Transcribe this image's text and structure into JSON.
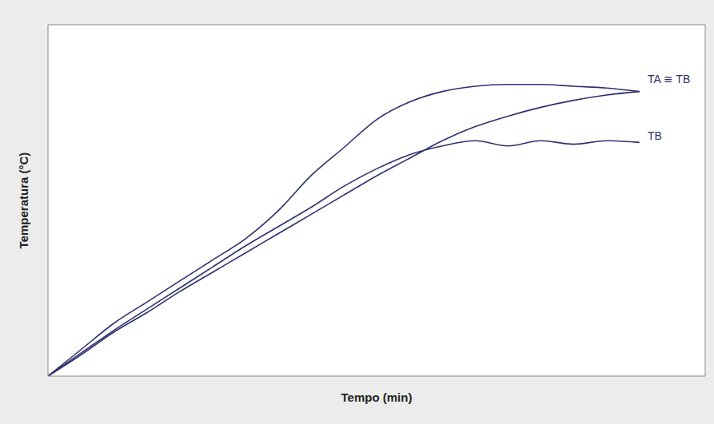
{
  "chart_data": {
    "type": "line",
    "x_label": "Tempo (min)",
    "y_label": "Temperatura (°C)",
    "x": [
      0,
      5,
      10,
      15,
      20,
      25,
      30,
      35,
      40,
      45,
      50,
      55,
      60,
      65,
      70,
      75,
      80,
      85,
      90
    ],
    "series": [
      {
        "color": "#2e3070",
        "line_style": "solid",
        "values": [
          0,
          7.5,
          15,
          21,
          27,
          33,
          39,
          47,
          57,
          65,
          73,
          78,
          81,
          82.5,
          83,
          83,
          82.5,
          82,
          81
        ]
      },
      {
        "color": "#2e3070",
        "line_style": "solid",
        "values": [
          0,
          6,
          12.5,
          18,
          24,
          29.5,
          35,
          40.5,
          46,
          51.5,
          57,
          62,
          67,
          71,
          74,
          76.5,
          78.5,
          80,
          81
        ]
      },
      {
        "color": "#2e3070",
        "line_style": "solid",
        "values": [
          0,
          6.5,
          13,
          19,
          25,
          31,
          37,
          42.5,
          48,
          54,
          59,
          63,
          65.5,
          67,
          65.5,
          67,
          66,
          67,
          66.5
        ]
      }
    ],
    "annotations": [
      {
        "text": "TA ≅ TB",
        "x": 91,
        "y": 84.5
      },
      {
        "text": "TB",
        "x": 91,
        "y": 68.5
      }
    ],
    "xlim": [
      0,
      100
    ],
    "ylim": [
      0,
      100
    ],
    "xticks": [],
    "yticks": [],
    "tick_labels": false,
    "grid": false
  }
}
